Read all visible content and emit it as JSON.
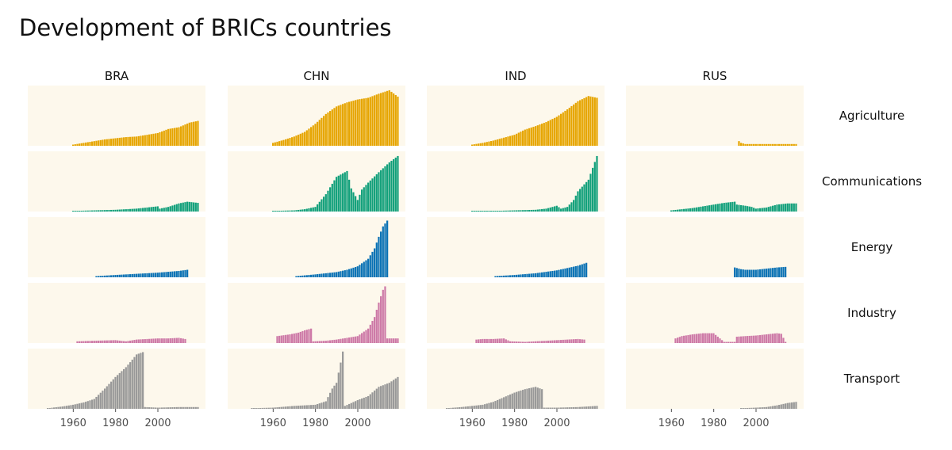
{
  "chart_data": {
    "type": "bar",
    "title": "Development of BRICs countries",
    "xlabel": "",
    "ylabel": "",
    "countries": [
      "BRA",
      "CHN",
      "IND",
      "RUS"
    ],
    "sectors": [
      "Agriculture",
      "Communications",
      "Energy",
      "Industry",
      "Transport"
    ],
    "x_ticks": [
      "1960",
      "1980",
      "2000"
    ],
    "xlim": [
      1940,
      2021
    ],
    "panel_background": "#fdf8ec",
    "colors": {
      "Agriculture": "#e6a500",
      "Communications": "#12a07b",
      "Energy": "#0a72b5",
      "Industry": "#cd79a7",
      "Transport": "#999999"
    },
    "series": {
      "BRA": {
        "Agriculture": {
          "x": [
            1960,
            1965,
            1970,
            1975,
            1980,
            1985,
            1990,
            1995,
            2000,
            2005,
            2010,
            2015,
            2019
          ],
          "y": [
            0.02,
            0.05,
            0.08,
            0.11,
            0.13,
            0.15,
            0.16,
            0.19,
            0.22,
            0.29,
            0.32,
            0.4,
            0.43
          ]
        },
        "Communications": {
          "x": [
            1960,
            1970,
            1980,
            1990,
            1995,
            2000,
            2001,
            2005,
            2010,
            2014,
            2019
          ],
          "y": [
            0.01,
            0.02,
            0.03,
            0.05,
            0.07,
            0.09,
            0.05,
            0.08,
            0.14,
            0.17,
            0.15
          ]
        },
        "Energy": {
          "x": [
            1971,
            1980,
            1990,
            2000,
            2010,
            2014
          ],
          "y": [
            0.02,
            0.04,
            0.06,
            0.08,
            0.11,
            0.13
          ]
        },
        "Industry": {
          "x": [
            1962,
            1970,
            1980,
            1985,
            1990,
            1995,
            2000,
            2005,
            2010,
            2013
          ],
          "y": [
            0.03,
            0.04,
            0.05,
            0.03,
            0.06,
            0.07,
            0.08,
            0.08,
            0.09,
            0.07
          ]
        },
        "Transport": {
          "x": [
            1948,
            1955,
            1960,
            1965,
            1970,
            1975,
            1980,
            1985,
            1988,
            1990,
            1993,
            1994,
            2000,
            2010,
            2019
          ],
          "y": [
            0.01,
            0.04,
            0.07,
            0.11,
            0.17,
            0.35,
            0.55,
            0.72,
            0.85,
            0.94,
            0.98,
            0.03,
            0.02,
            0.03,
            0.03
          ]
        }
      },
      "CHN": {
        "Agriculture": {
          "x": [
            1960,
            1965,
            1970,
            1975,
            1980,
            1985,
            1990,
            1995,
            2000,
            2005,
            2010,
            2015,
            2019
          ],
          "y": [
            0.05,
            0.1,
            0.16,
            0.24,
            0.38,
            0.55,
            0.68,
            0.75,
            0.8,
            0.83,
            0.9,
            0.96,
            0.85
          ]
        },
        "Communications": {
          "x": [
            1960,
            1970,
            1975,
            1980,
            1985,
            1990,
            1995,
            1997,
            2000,
            2002,
            2005,
            2010,
            2015,
            2019
          ],
          "y": [
            0.01,
            0.02,
            0.04,
            0.08,
            0.3,
            0.6,
            0.7,
            0.4,
            0.2,
            0.38,
            0.5,
            0.68,
            0.85,
            0.96
          ]
        },
        "Energy": {
          "x": [
            1971,
            1980,
            1990,
            1995,
            2000,
            2005,
            2008,
            2010,
            2012,
            2014
          ],
          "y": [
            0.02,
            0.05,
            0.09,
            0.13,
            0.19,
            0.32,
            0.5,
            0.7,
            0.88,
            0.98
          ]
        },
        "Industry": {
          "x": [
            1962,
            1968,
            1972,
            1975,
            1978,
            1979,
            1985,
            1990,
            1995,
            2000,
            2005,
            2008,
            2010,
            2012,
            2013,
            2014,
            2019
          ],
          "y": [
            0.12,
            0.15,
            0.18,
            0.22,
            0.25,
            0.03,
            0.04,
            0.06,
            0.09,
            0.12,
            0.25,
            0.45,
            0.7,
            0.92,
            0.98,
            0.08,
            0.08
          ]
        },
        "Transport": {
          "x": [
            1950,
            1960,
            1970,
            1975,
            1980,
            1985,
            1988,
            1990,
            1992,
            1993,
            1994,
            2000,
            2005,
            2010,
            2015,
            2019
          ],
          "y": [
            0.01,
            0.02,
            0.05,
            0.06,
            0.07,
            0.13,
            0.35,
            0.45,
            0.8,
            0.99,
            0.05,
            0.15,
            0.22,
            0.38,
            0.45,
            0.55
          ]
        }
      },
      "IND": {
        "Agriculture": {
          "x": [
            1960,
            1965,
            1970,
            1975,
            1980,
            1985,
            1990,
            1995,
            2000,
            2005,
            2010,
            2015,
            2019
          ],
          "y": [
            0.02,
            0.05,
            0.09,
            0.14,
            0.19,
            0.28,
            0.34,
            0.41,
            0.5,
            0.63,
            0.77,
            0.86,
            0.83
          ]
        },
        "Communications": {
          "x": [
            1960,
            1970,
            1980,
            1990,
            1995,
            2000,
            2002,
            2005,
            2008,
            2010,
            2015,
            2019
          ],
          "y": [
            0.01,
            0.01,
            0.02,
            0.03,
            0.05,
            0.1,
            0.05,
            0.08,
            0.2,
            0.35,
            0.55,
            0.96
          ]
        },
        "Energy": {
          "x": [
            1971,
            1980,
            1990,
            2000,
            2010,
            2014
          ],
          "y": [
            0.02,
            0.04,
            0.07,
            0.12,
            0.2,
            0.25
          ]
        },
        "Industry": {
          "x": [
            1962,
            1965,
            1970,
            1975,
            1978,
            1985,
            1990,
            1995,
            2000,
            2005,
            2010,
            2013
          ],
          "y": [
            0.06,
            0.07,
            0.07,
            0.08,
            0.03,
            0.02,
            0.03,
            0.04,
            0.05,
            0.06,
            0.07,
            0.06
          ]
        },
        "Transport": {
          "x": [
            1948,
            1955,
            1960,
            1965,
            1970,
            1975,
            1980,
            1985,
            1990,
            1993,
            1994,
            2000,
            2010,
            2019
          ],
          "y": [
            0.01,
            0.03,
            0.05,
            0.07,
            0.12,
            0.2,
            0.28,
            0.34,
            0.38,
            0.34,
            0.02,
            0.02,
            0.03,
            0.05
          ]
        }
      },
      "RUS": {
        "Agriculture": {
          "x": [
            1992,
            1993,
            1995,
            2000,
            2005,
            2010,
            2015,
            2019
          ],
          "y": [
            0.08,
            0.05,
            0.03,
            0.03,
            0.03,
            0.03,
            0.03,
            0.03
          ]
        },
        "Communications": {
          "x": [
            1960,
            1965,
            1970,
            1975,
            1980,
            1985,
            1990,
            1991,
            1995,
            1998,
            2000,
            2005,
            2010,
            2015,
            2019
          ],
          "y": [
            0.02,
            0.04,
            0.06,
            0.09,
            0.12,
            0.15,
            0.17,
            0.12,
            0.1,
            0.08,
            0.05,
            0.07,
            0.12,
            0.14,
            0.14
          ]
        },
        "Energy": {
          "x": [
            1990,
            1993,
            1995,
            2000,
            2005,
            2010,
            2014
          ],
          "y": [
            0.17,
            0.14,
            0.13,
            0.13,
            0.15,
            0.17,
            0.18
          ]
        },
        "Industry": {
          "x": [
            1962,
            1965,
            1970,
            1975,
            1980,
            1985,
            1990,
            1991,
            1995,
            2000,
            2005,
            2010,
            2012,
            2014
          ],
          "y": [
            0.08,
            0.12,
            0.15,
            0.17,
            0.17,
            0.02,
            0.02,
            0.11,
            0.12,
            0.13,
            0.15,
            0.17,
            0.16,
            0.02
          ]
        },
        "Transport": {
          "x": [
            1993,
            2000,
            2005,
            2010,
            2015,
            2019
          ],
          "y": [
            0.01,
            0.02,
            0.03,
            0.06,
            0.1,
            0.12
          ]
        }
      }
    }
  }
}
